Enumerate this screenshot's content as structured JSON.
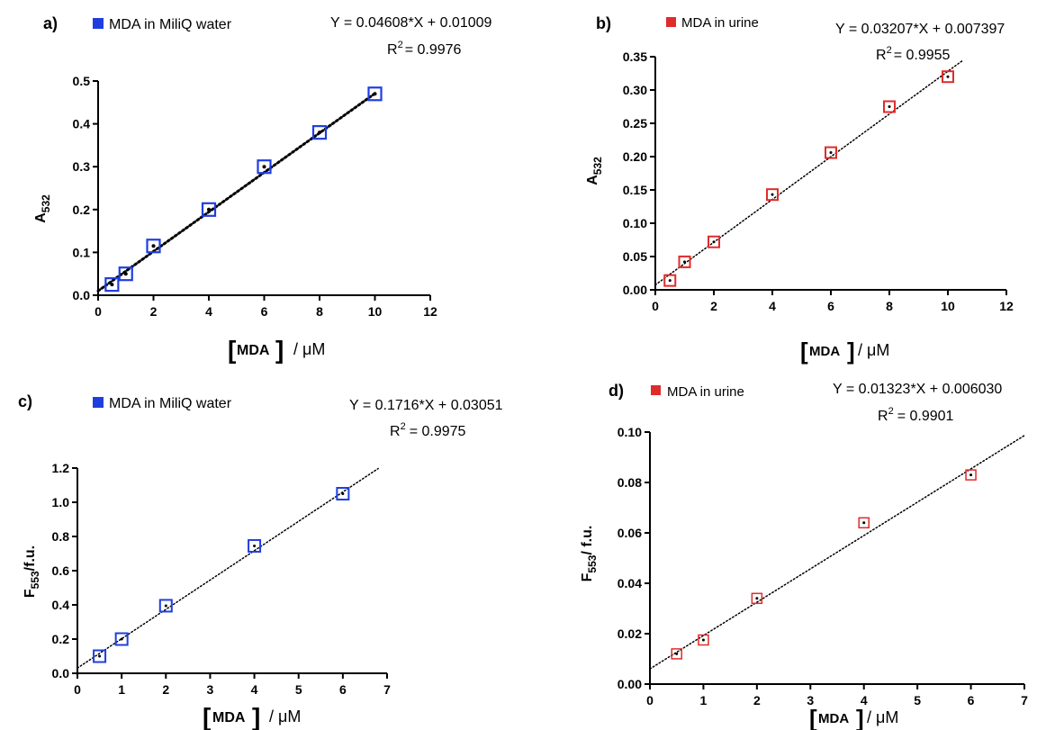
{
  "chart_data": [
    {
      "panel": "a)",
      "type": "scatter",
      "legend": "MDA in MiliQ water",
      "marker_color": "#1f3ee0",
      "equation": "Y = 0.04608*X + 0.01009",
      "r2_prefix": "R",
      "r2_exp": "2",
      "r2_value": "= 0.9976",
      "ylabel_main": "A",
      "ylabel_sub": "532",
      "xlabel_mda": "MDA",
      "xlabel_unit": "/ μM",
      "xlim": [
        0,
        12
      ],
      "ylim": [
        0,
        0.5
      ],
      "xticks": [
        0,
        2,
        4,
        6,
        8,
        10,
        12
      ],
      "yticks": [
        0.0,
        0.1,
        0.2,
        0.3,
        0.4,
        0.5
      ],
      "ytick_labels": [
        "0.0",
        "0.1",
        "0.2",
        "0.3",
        "0.4",
        "0.5"
      ],
      "fit": {
        "slope": 0.04608,
        "intercept": 0.01009,
        "x_range": [
          0,
          10
        ]
      },
      "x": [
        0.5,
        1,
        2,
        4,
        6,
        8,
        10
      ],
      "y": [
        0.025,
        0.05,
        0.115,
        0.2,
        0.3,
        0.38,
        0.47
      ]
    },
    {
      "panel": "b)",
      "type": "scatter",
      "legend": "MDA in urine",
      "marker_color": "#e02b2b",
      "equation": "Y = 0.03207*X + 0.007397",
      "r2_prefix": "R",
      "r2_exp": "2",
      "r2_value": "= 0.9955",
      "ylabel_main": "A",
      "ylabel_sub": "532",
      "xlabel_mda": "MDA",
      "xlabel_unit": "/ μM",
      "xlim": [
        0,
        12
      ],
      "ylim": [
        0,
        0.35
      ],
      "xticks": [
        0,
        2,
        4,
        6,
        8,
        10,
        12
      ],
      "yticks": [
        0.0,
        0.05,
        0.1,
        0.15,
        0.2,
        0.25,
        0.3,
        0.35
      ],
      "ytick_labels": [
        "0.00",
        "0.05",
        "0.10",
        "0.15",
        "0.20",
        "0.25",
        "0.30",
        "0.35"
      ],
      "fit": {
        "slope": 0.03207,
        "intercept": 0.007397,
        "x_range": [
          0,
          10.5
        ]
      },
      "x": [
        0.5,
        1,
        2,
        4,
        6,
        8,
        10
      ],
      "y": [
        0.014,
        0.042,
        0.072,
        0.143,
        0.206,
        0.275,
        0.32
      ]
    },
    {
      "panel": "c)",
      "type": "scatter",
      "legend": "MDA in MiliQ water",
      "marker_color": "#1f3ee0",
      "equation": "Y = 0.1716*X + 0.03051",
      "r2_prefix": "R",
      "r2_exp": "2",
      "r2_value": "= 0.9975",
      "ylabel_main": "F",
      "ylabel_sub": "553",
      "ylabel_suffix": "/f.u.",
      "xlabel_mda": "MDA",
      "xlabel_unit": "/ μM",
      "xlim": [
        0,
        7
      ],
      "ylim": [
        0,
        1.2
      ],
      "xticks": [
        0,
        1,
        2,
        3,
        4,
        5,
        6,
        7
      ],
      "yticks": [
        0.0,
        0.2,
        0.4,
        0.6,
        0.8,
        1.0,
        1.2
      ],
      "ytick_labels": [
        "0.0",
        "0.2",
        "0.4",
        "0.6",
        "0.8",
        "1.0",
        "1.2"
      ],
      "fit": {
        "slope": 0.1716,
        "intercept": 0.03051,
        "x_range": [
          0,
          6.8
        ]
      },
      "x": [
        0.5,
        1,
        2,
        4,
        6
      ],
      "y": [
        0.1,
        0.2,
        0.395,
        0.745,
        1.05
      ]
    },
    {
      "panel": "d)",
      "type": "scatter",
      "legend": "MDA in urine",
      "marker_color": "#e02b2b",
      "equation": "Y = 0.01323*X + 0.006030",
      "r2_prefix": "R",
      "r2_exp": "2",
      "r2_value": "= 0.9901",
      "ylabel_main": "F",
      "ylabel_sub": "553",
      "ylabel_suffix": "/ f.u.",
      "xlabel_mda": "MDA",
      "xlabel_unit": "/ μM",
      "xlim": [
        0,
        7
      ],
      "ylim": [
        0,
        0.1
      ],
      "xticks": [
        0,
        1,
        2,
        3,
        4,
        5,
        6,
        7
      ],
      "yticks": [
        0.0,
        0.02,
        0.04,
        0.06,
        0.08,
        0.1
      ],
      "ytick_labels": [
        "0.00",
        "0.02",
        "0.04",
        "0.06",
        "0.08",
        "0.10"
      ],
      "fit": {
        "slope": 0.01323,
        "intercept": 0.00603,
        "x_range": [
          0,
          7
        ]
      },
      "x": [
        0.5,
        1,
        2,
        4,
        6
      ],
      "y": [
        0.012,
        0.0175,
        0.034,
        0.064,
        0.083
      ]
    }
  ]
}
